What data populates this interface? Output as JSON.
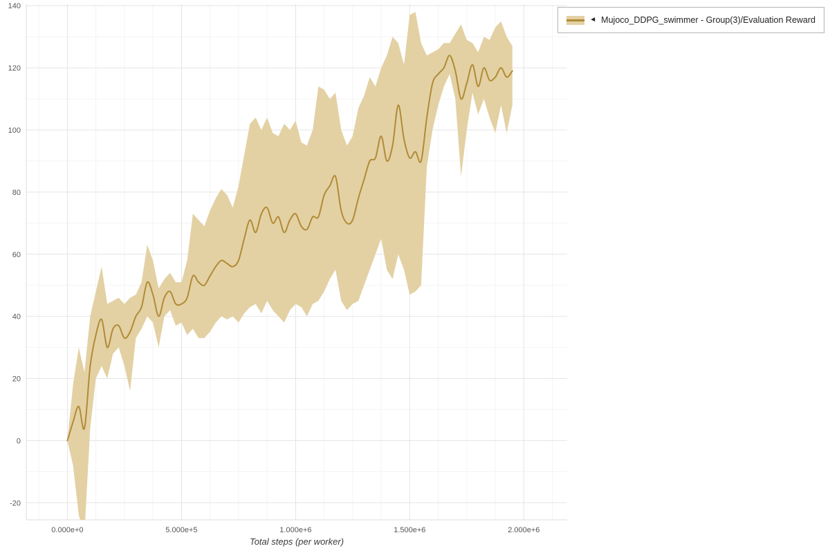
{
  "page": {
    "background": "#ffffff"
  },
  "legend": {
    "collapse_icon": "◄",
    "label": "Mujoco_DDPG_swimmer - Group(3)/Evaluation Reward",
    "swatch_band_color": "#e3d1a4",
    "swatch_line_color": "#b18a34"
  },
  "chart_data": {
    "type": "line",
    "title": "",
    "xlabel": "Total steps (per worker)",
    "ylabel": "",
    "grid": true,
    "legend_position": "top-right",
    "xlim": [
      -180000,
      2190000
    ],
    "ylim": [
      -25.5,
      140.5
    ],
    "x_tick_values": [
      0,
      500000,
      1000000,
      1500000,
      2000000
    ],
    "x_tick_labels": [
      "0.000e+0",
      "5.000e+5",
      "1.000e+6",
      "1.500e+6",
      "2.000e+6"
    ],
    "y_tick_values": [
      -20,
      0,
      20,
      40,
      60,
      80,
      100,
      120,
      140
    ],
    "y_tick_labels": [
      "-20",
      "0",
      "20",
      "40",
      "60",
      "80",
      "100",
      "120",
      "140"
    ],
    "series": [
      {
        "name": "Mujoco_DDPG_swimmer - Group(3)/Evaluation Reward",
        "line_color": "#b18a34",
        "band_color": "#e3d1a4",
        "x": [
          0,
          25000,
          50000,
          75000,
          100000,
          125000,
          150000,
          175000,
          200000,
          225000,
          250000,
          275000,
          300000,
          325000,
          350000,
          375000,
          400000,
          425000,
          450000,
          475000,
          500000,
          525000,
          550000,
          575000,
          600000,
          625000,
          650000,
          675000,
          700000,
          725000,
          750000,
          775000,
          800000,
          825000,
          850000,
          875000,
          900000,
          925000,
          950000,
          975000,
          1000000,
          1025000,
          1050000,
          1075000,
          1100000,
          1125000,
          1150000,
          1175000,
          1200000,
          1225000,
          1250000,
          1275000,
          1300000,
          1325000,
          1350000,
          1375000,
          1400000,
          1425000,
          1450000,
          1475000,
          1500000,
          1525000,
          1550000,
          1575000,
          1600000,
          1625000,
          1650000,
          1675000,
          1700000,
          1725000,
          1750000,
          1775000,
          1800000,
          1825000,
          1850000,
          1875000,
          1900000,
          1925000,
          1950000
        ],
        "mean": [
          0,
          6,
          11,
          4,
          24,
          34,
          39,
          30,
          36,
          37,
          33,
          35,
          40,
          43,
          51,
          47,
          40,
          46,
          48,
          44,
          44,
          46,
          53,
          51,
          50,
          53,
          56,
          58,
          57,
          56,
          58,
          65,
          71,
          67,
          73,
          75,
          70,
          72,
          67,
          71,
          73,
          69,
          68,
          72,
          72,
          79,
          82,
          85,
          74,
          70,
          71,
          78,
          84,
          90,
          91,
          98,
          90,
          95,
          108,
          97,
          91,
          93,
          90,
          104,
          115,
          118,
          120,
          124,
          119,
          110,
          115,
          121,
          114,
          120,
          116,
          117,
          120,
          117,
          119
        ],
        "lower": [
          0,
          -8,
          -24,
          -30,
          4,
          20,
          24,
          20,
          28,
          30,
          24,
          16,
          33,
          36,
          40,
          38,
          30,
          40,
          42,
          37,
          38,
          34,
          36,
          33,
          33,
          35,
          38,
          40,
          39,
          40,
          38,
          41,
          43,
          44,
          41,
          45,
          42,
          40,
          38,
          42,
          44,
          43,
          40,
          44,
          45,
          48,
          52,
          55,
          45,
          42,
          44,
          45,
          50,
          55,
          60,
          65,
          55,
          52,
          60,
          55,
          47,
          48,
          50,
          88,
          100,
          108,
          114,
          118,
          110,
          85,
          100,
          112,
          105,
          110,
          104,
          99,
          108,
          99,
          108
        ],
        "upper": [
          0,
          18,
          30,
          22,
          40,
          48,
          56,
          44,
          45,
          46,
          44,
          46,
          47,
          51,
          63,
          58,
          49,
          52,
          54,
          51,
          51,
          58,
          73,
          71,
          69,
          74,
          78,
          81,
          79,
          75,
          82,
          92,
          102,
          104,
          100,
          104,
          99,
          98,
          102,
          100,
          103,
          96,
          95,
          100,
          114,
          113,
          110,
          112,
          100,
          95,
          98,
          107,
          111,
          117,
          114,
          120,
          124,
          130,
          128,
          121,
          137,
          138,
          128,
          124,
          125,
          126,
          128,
          128,
          131,
          134,
          129,
          128,
          125,
          130,
          129,
          133,
          135,
          130,
          127
        ]
      }
    ]
  }
}
